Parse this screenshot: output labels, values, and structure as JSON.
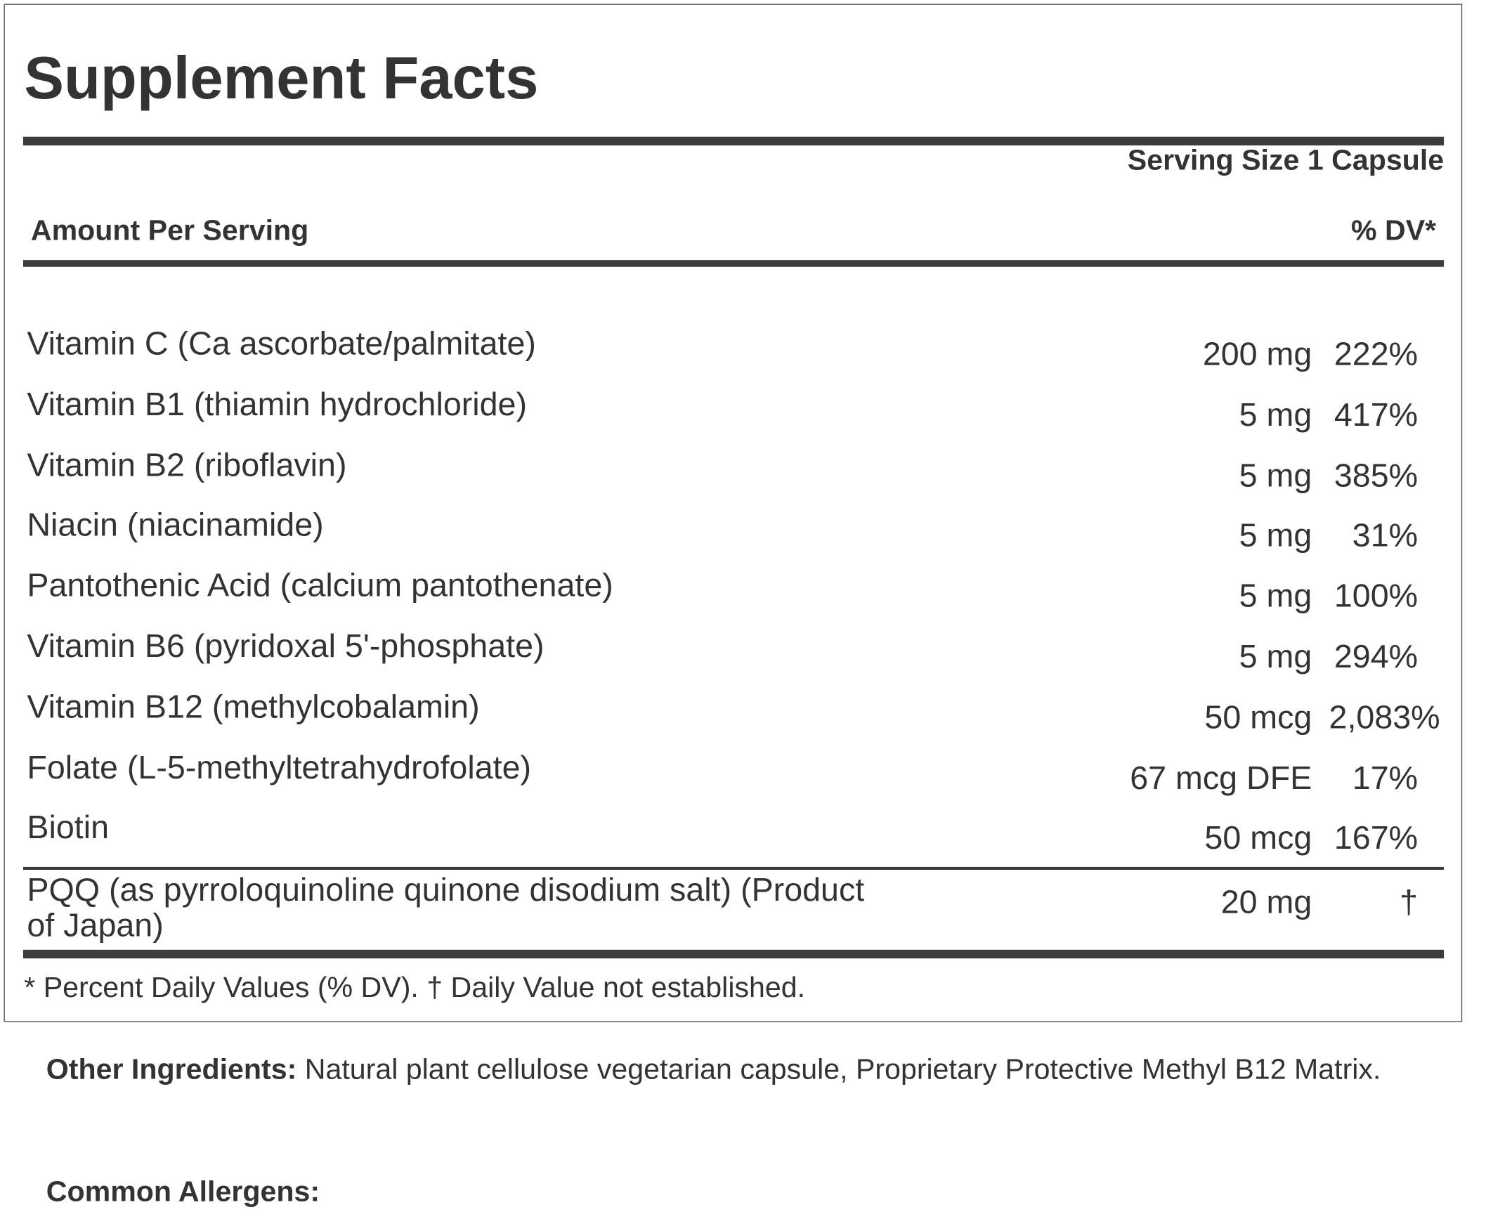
{
  "title": "Supplement Facts",
  "serving_size": "Serving Size 1 Capsule",
  "amount_per_serving": "Amount Per Serving",
  "dv_header": "% DV*",
  "rows": [
    {
      "name": "Vitamin C (Ca ascorbate/palmitate)",
      "amount": "200 mg",
      "dv": "222%"
    },
    {
      "name": "Vitamin B1 (thiamin hydrochloride)",
      "amount": "5 mg",
      "dv": "417%"
    },
    {
      "name": "Vitamin B2 (riboflavin)",
      "amount": "5 mg",
      "dv": "385%"
    },
    {
      "name": "Niacin (niacinamide)",
      "amount": "5 mg",
      "dv": "31%"
    },
    {
      "name": "Pantothenic Acid (calcium pantothenate)",
      "amount": "5 mg",
      "dv": "100%"
    },
    {
      "name": "Vitamin B6 (pyridoxal 5'-phosphate)",
      "amount": "5 mg",
      "dv": "294%"
    },
    {
      "name": "Vitamin B12 (methylcobalamin)",
      "amount": "50 mcg",
      "dv": "2,083%"
    },
    {
      "name": "Folate (L-5-methyltetrahydrofolate)",
      "amount": "67 mcg DFE",
      "dv": "17%"
    },
    {
      "name": "Biotin",
      "amount": "50 mcg",
      "dv": "167%"
    }
  ],
  "pqq": {
    "name_line1": "PQQ (as pyrroloquinoline quinone disodium salt) (Product",
    "name_line2": "of Japan)",
    "amount": "20 mg",
    "dv": "†"
  },
  "footnote": "* Percent Daily Values (% DV). † Daily Value not established.",
  "other_ingredients": {
    "label": "Other Ingredients:",
    "text": " Natural plant cellulose vegetarian capsule, Proprietary Protective Methyl B12 Matrix."
  },
  "common_allergens": {
    "label": "Common Allergens:"
  }
}
